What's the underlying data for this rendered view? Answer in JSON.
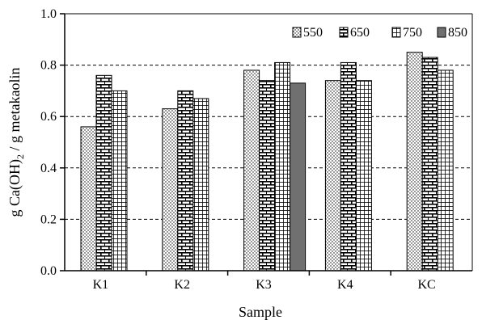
{
  "chart_data": {
    "type": "bar",
    "xlabel": "Sample",
    "ylabel_main": "g Ca(OH)",
    "ylabel_sub": "2",
    "ylabel_rest": " / g metakaolin",
    "categories": [
      "K1",
      "K2",
      "K3",
      "K4",
      "KC"
    ],
    "ylim": [
      0,
      1.0
    ],
    "yticks": [
      0.0,
      0.2,
      0.4,
      0.6,
      0.8,
      1.0
    ],
    "ytick_labels": [
      "0.0",
      "0.2",
      "0.4",
      "0.6",
      "0.8",
      "1.0"
    ],
    "grid": "horizontal dashed at 0.2, 0.4, 0.6, 0.8",
    "legend_position": "top-right",
    "series": [
      {
        "name": "550",
        "pattern": "dots",
        "values": [
          0.56,
          0.63,
          0.78,
          0.74,
          0.85
        ]
      },
      {
        "name": "650",
        "pattern": "brick",
        "values": [
          0.76,
          0.7,
          0.74,
          0.81,
          0.83
        ]
      },
      {
        "name": "750",
        "pattern": "grid",
        "values": [
          0.7,
          0.67,
          0.81,
          0.74,
          0.78
        ]
      },
      {
        "name": "850",
        "pattern": "solid",
        "values": [
          null,
          null,
          0.73,
          null,
          null
        ]
      }
    ],
    "colors": {
      "solid": "#707070",
      "outline": "#000000",
      "gridline": "#000000"
    }
  }
}
